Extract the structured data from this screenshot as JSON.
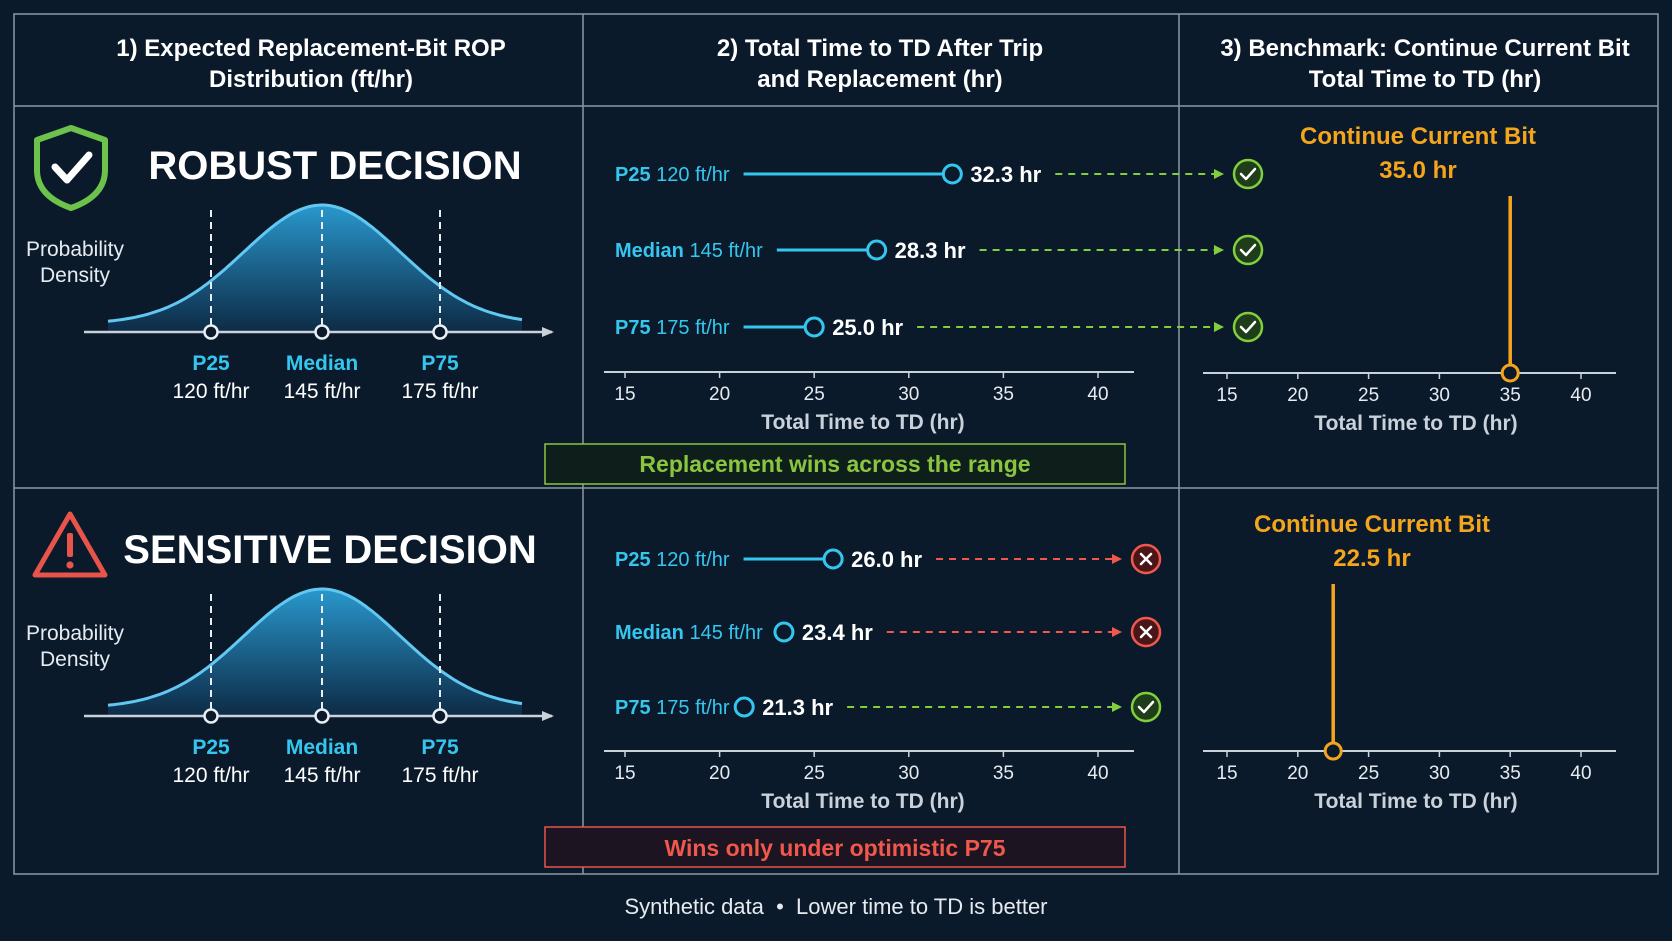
{
  "headers": {
    "col1": [
      "1) Expected Replacement-Bit ROP",
      "Distribution (ft/hr)"
    ],
    "col2": [
      "2) Total Time to TD After Trip",
      "and Replacement (hr)"
    ],
    "col3": [
      "3) Benchmark: Continue Current Bit",
      "Total Time to TD (hr)"
    ]
  },
  "footer": "Synthetic data  •  Lower time to TD is better",
  "colors": {
    "background": "#0b1a2b",
    "cyan": "#35c6ef",
    "orange": "#f5a51c",
    "green": "#7fd03b",
    "red": "#f0574d"
  },
  "chart_data": [
    {
      "type": "area",
      "section": "robust",
      "title": "ROBUST DECISION",
      "icon": "shield-check-icon",
      "ylabel": [
        "Probability",
        "Density"
      ],
      "markers": [
        {
          "label": "P25",
          "value": "120 ft/hr"
        },
        {
          "label": "Median",
          "value": "145 ft/hr"
        },
        {
          "label": "P75",
          "value": "175 ft/hr"
        }
      ]
    },
    {
      "type": "scatter",
      "section": "robust",
      "xlabel": "Total Time to TD (hr)",
      "xlim": [
        15,
        40
      ],
      "xticks": [
        15,
        20,
        25,
        30,
        35,
        40
      ],
      "rows": [
        {
          "label": "P25",
          "rop": "120 ft/hr",
          "time": 32.3,
          "time_label": "32.3 hr",
          "outcome": "win"
        },
        {
          "label": "Median",
          "rop": "145 ft/hr",
          "time": 28.3,
          "time_label": "28.3 hr",
          "outcome": "win"
        },
        {
          "label": "P75",
          "rop": "175 ft/hr",
          "time": 25.0,
          "time_label": "25.0 hr",
          "outcome": "win"
        }
      ],
      "verdict": "Replacement wins across the range"
    },
    {
      "type": "scatter",
      "section": "robust",
      "xlabel": "Total Time to TD (hr)",
      "xlim": [
        15,
        40
      ],
      "xticks": [
        15,
        20,
        25,
        30,
        35,
        40
      ],
      "benchmark_label": "Continue Current Bit",
      "value": 35.0,
      "value_label": "35.0 hr"
    },
    {
      "type": "area",
      "section": "sensitive",
      "title": "SENSITIVE DECISION",
      "icon": "warning-triangle-icon",
      "ylabel": [
        "Probability",
        "Density"
      ],
      "markers": [
        {
          "label": "P25",
          "value": "120 ft/hr"
        },
        {
          "label": "Median",
          "value": "145 ft/hr"
        },
        {
          "label": "P75",
          "value": "175 ft/hr"
        }
      ]
    },
    {
      "type": "scatter",
      "section": "sensitive",
      "xlabel": "Total Time to TD (hr)",
      "xlim": [
        15,
        40
      ],
      "xticks": [
        15,
        20,
        25,
        30,
        35,
        40
      ],
      "rows": [
        {
          "label": "P25",
          "rop": "120 ft/hr",
          "time": 26.0,
          "time_label": "26.0 hr",
          "outcome": "lose"
        },
        {
          "label": "Median",
          "rop": "145 ft/hr",
          "time": 23.4,
          "time_label": "23.4 hr",
          "outcome": "lose"
        },
        {
          "label": "P75",
          "rop": "175 ft/hr",
          "time": 21.3,
          "time_label": "21.3 hr",
          "outcome": "win"
        }
      ],
      "verdict": "Wins only under optimistic P75"
    },
    {
      "type": "scatter",
      "section": "sensitive",
      "xlabel": "Total Time to TD (hr)",
      "xlim": [
        15,
        40
      ],
      "xticks": [
        15,
        20,
        25,
        30,
        35,
        40
      ],
      "benchmark_label": "Continue Current Bit",
      "value": 22.5,
      "value_label": "22.5 hr"
    }
  ]
}
